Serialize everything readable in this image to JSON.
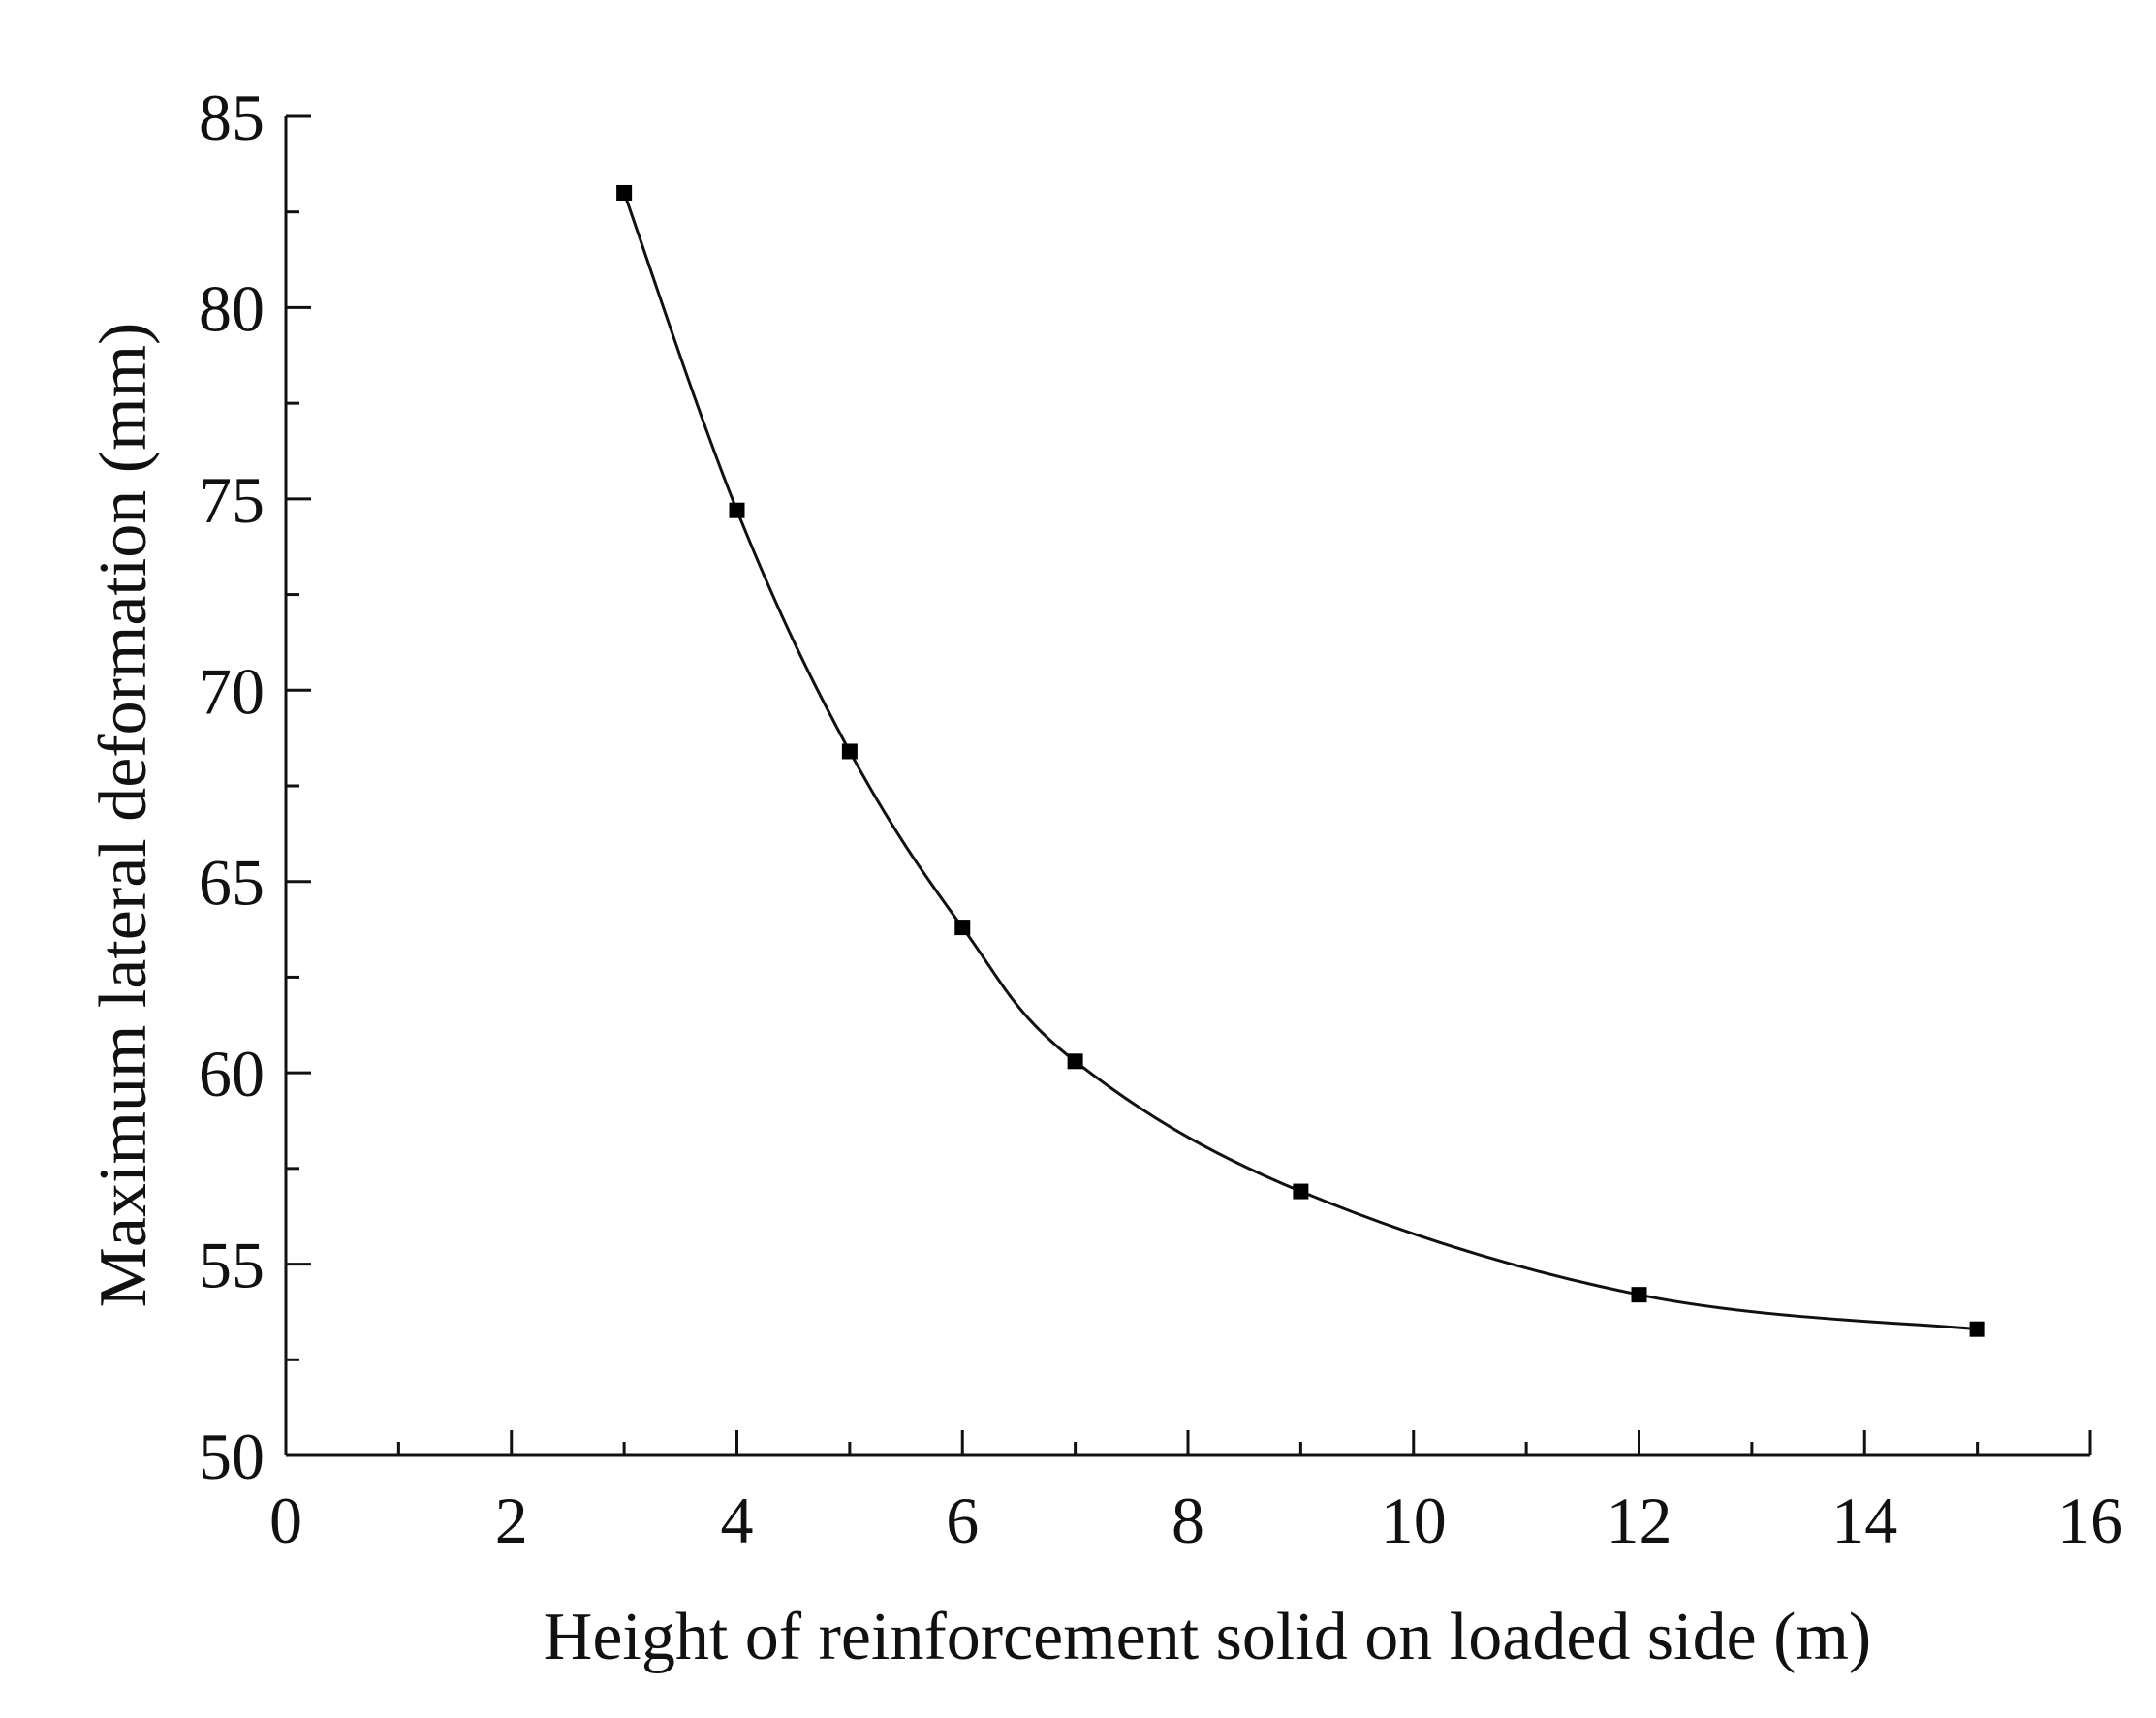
{
  "chart_data": {
    "type": "line",
    "title": "",
    "xlabel": "Height of reinforcement solid on loaded side (m)",
    "ylabel": "Maximum lateral deformation (mm)",
    "xlim": [
      0,
      16
    ],
    "ylim": [
      50,
      85
    ],
    "xticks": [
      0,
      2,
      4,
      6,
      8,
      10,
      12,
      14,
      16
    ],
    "yticks": [
      50,
      55,
      60,
      65,
      70,
      75,
      80,
      85
    ],
    "x_minor_ticks": [
      1,
      3,
      5,
      7,
      9,
      11,
      13,
      15
    ],
    "y_minor_ticks": [
      52.5,
      57.5,
      62.5,
      67.5,
      72.5,
      77.5,
      82.5
    ],
    "grid": false,
    "legend": "none",
    "marker": "square",
    "color": "#000000",
    "series": [
      {
        "x": [
          3,
          4,
          5,
          6,
          7,
          9,
          12,
          15
        ],
        "values": [
          83.0,
          74.7,
          68.4,
          63.8,
          60.3,
          56.9,
          54.2,
          53.3
        ]
      }
    ]
  }
}
